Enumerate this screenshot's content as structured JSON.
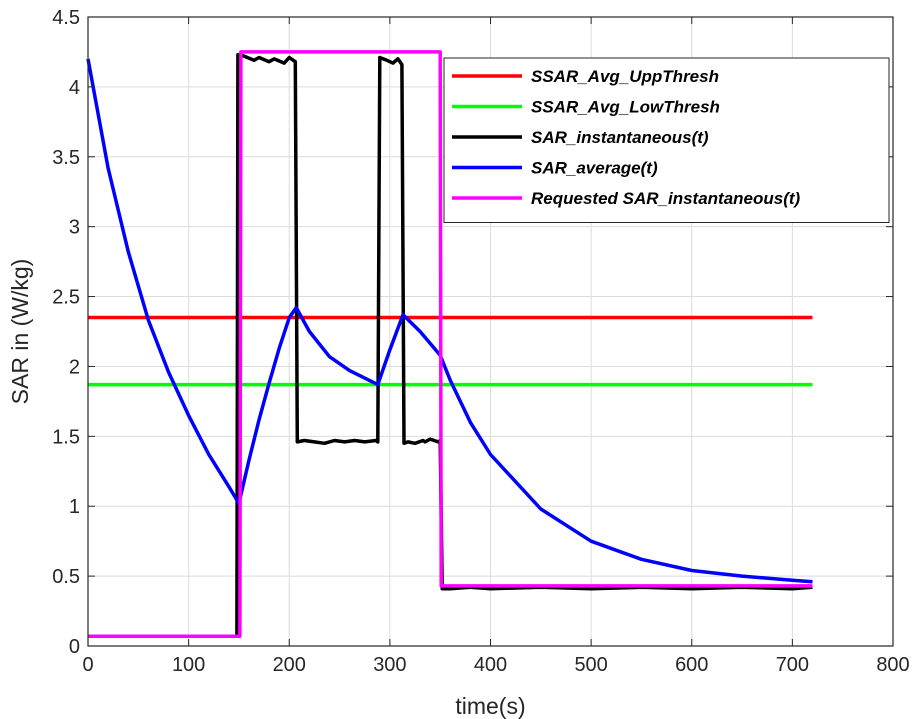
{
  "chart_data": {
    "type": "line",
    "xlabel": "time(s)",
    "ylabel": "SAR in (W/kg)",
    "xlim": [
      0,
      800
    ],
    "ylim": [
      0,
      4.5
    ],
    "xticks": [
      0,
      100,
      200,
      300,
      400,
      500,
      600,
      700,
      800
    ],
    "yticks": [
      0,
      0.5,
      1,
      1.5,
      2,
      2.5,
      3,
      3.5,
      4,
      4.5
    ],
    "xtick_labels": [
      "0",
      "100",
      "200",
      "300",
      "400",
      "500",
      "600",
      "700",
      "800"
    ],
    "ytick_labels": [
      "0",
      "0.5",
      "1",
      "1.5",
      "2",
      "2.5",
      "3",
      "3.5",
      "4",
      "4.5"
    ],
    "grid": true,
    "legend_position": "top-right",
    "series": [
      {
        "name": "SSAR_Avg_UppThresh",
        "color": "#ff0000",
        "x": [
          0,
          720
        ],
        "y": [
          2.35,
          2.35
        ]
      },
      {
        "name": "SSAR_Avg_LowThresh",
        "color": "#00ff00",
        "x": [
          0,
          720
        ],
        "y": [
          1.87,
          1.87
        ]
      },
      {
        "name": "SAR_instantaneous(t)",
        "color": "#000000",
        "x": [
          0,
          148,
          149,
          155,
          165,
          170,
          180,
          185,
          195,
          200,
          204,
          206,
          208,
          215,
          225,
          235,
          245,
          255,
          265,
          275,
          286,
          288,
          290,
          297,
          303,
          308,
          312,
          314,
          318,
          325,
          333,
          335,
          340,
          348,
          350,
          352,
          360,
          380,
          400,
          450,
          500,
          550,
          600,
          650,
          700,
          720
        ],
        "y": [
          0.07,
          0.07,
          4.23,
          4.22,
          4.19,
          4.21,
          4.18,
          4.2,
          4.17,
          4.21,
          4.19,
          4.18,
          1.46,
          1.47,
          1.46,
          1.45,
          1.47,
          1.46,
          1.47,
          1.46,
          1.47,
          1.46,
          4.21,
          4.19,
          4.17,
          4.2,
          4.16,
          1.45,
          1.46,
          1.45,
          1.47,
          1.46,
          1.48,
          1.46,
          1.47,
          0.41,
          0.41,
          0.42,
          0.41,
          0.42,
          0.41,
          0.42,
          0.41,
          0.42,
          0.41,
          0.42
        ]
      },
      {
        "name": "SAR_average(t)",
        "color": "#0000ff",
        "x": [
          0,
          20,
          40,
          60,
          80,
          100,
          120,
          140,
          150,
          160,
          170,
          180,
          190,
          200,
          207,
          220,
          240,
          260,
          288,
          300,
          313,
          330,
          350,
          360,
          380,
          400,
          450,
          500,
          550,
          600,
          650,
          700,
          720
        ],
        "y": [
          4.2,
          3.42,
          2.82,
          2.33,
          1.96,
          1.65,
          1.37,
          1.14,
          1.02,
          1.33,
          1.62,
          1.88,
          2.13,
          2.35,
          2.42,
          2.25,
          2.07,
          1.97,
          1.87,
          2.12,
          2.37,
          2.25,
          2.08,
          1.9,
          1.6,
          1.37,
          0.98,
          0.75,
          0.62,
          0.54,
          0.5,
          0.47,
          0.46
        ]
      },
      {
        "name": "Requested SAR_instantaneous(t)",
        "color": "#ff00ff",
        "x": [
          0,
          151,
          152,
          350,
          351,
          720
        ],
        "y": [
          0.07,
          0.07,
          4.25,
          4.25,
          0.43,
          0.43
        ]
      }
    ]
  }
}
